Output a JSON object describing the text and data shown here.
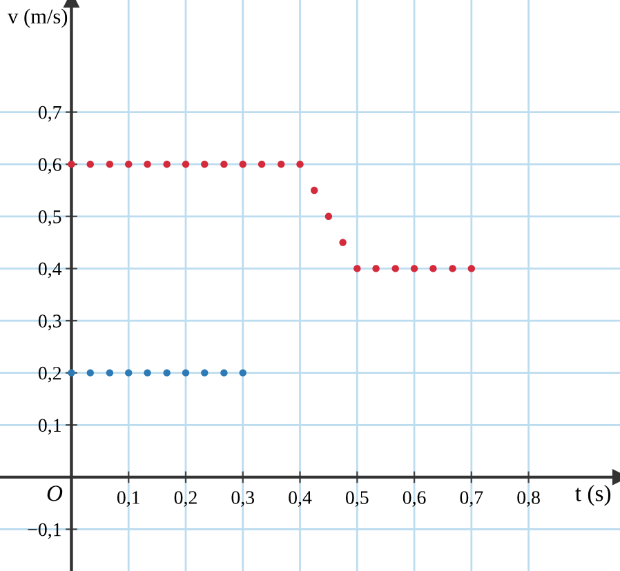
{
  "chart_data": {
    "type": "scatter",
    "xlabel": "t (s)",
    "ylabel": "v (m/s)",
    "annotations": [
      "O"
    ],
    "series": [
      {
        "color": "#d42a3c",
        "x": [
          0,
          0.033,
          0.067,
          0.1,
          0.133,
          0.167,
          0.2,
          0.233,
          0.267,
          0.3,
          0.333,
          0.367,
          0.4,
          0.425,
          0.45,
          0.475,
          0.5,
          0.533,
          0.567,
          0.6,
          0.633,
          0.667,
          0.7
        ],
        "values": [
          0.6,
          0.6,
          0.6,
          0.6,
          0.6,
          0.6,
          0.6,
          0.6,
          0.6,
          0.6,
          0.6,
          0.6,
          0.6,
          0.55,
          0.5,
          0.45,
          0.4,
          0.4,
          0.4,
          0.4,
          0.4,
          0.4,
          0.4
        ]
      },
      {
        "color": "#2d7bb6",
        "x": [
          0,
          0.033,
          0.067,
          0.1,
          0.133,
          0.167,
          0.2,
          0.233,
          0.267,
          0.3
        ],
        "values": [
          0.2,
          0.2,
          0.2,
          0.2,
          0.2,
          0.2,
          0.2,
          0.2,
          0.2,
          0.2
        ]
      }
    ],
    "marker": "circle",
    "grid": true,
    "xlim": [
      -0.125,
      0.96
    ],
    "ylim": [
      -0.18,
      0.915
    ],
    "xticks": [
      {
        "value": 0.1,
        "label": "0,1"
      },
      {
        "value": 0.2,
        "label": "0,2"
      },
      {
        "value": 0.3,
        "label": "0,3"
      },
      {
        "value": 0.4,
        "label": "0,4"
      },
      {
        "value": 0.5,
        "label": "0,5"
      },
      {
        "value": 0.6,
        "label": "0,6"
      },
      {
        "value": 0.7,
        "label": "0,7"
      },
      {
        "value": 0.8,
        "label": "0,8"
      }
    ],
    "yticks": [
      {
        "value": -0.1,
        "label": "−0,1"
      },
      {
        "value": 0.1,
        "label": "0,1"
      },
      {
        "value": 0.2,
        "label": "0,2"
      },
      {
        "value": 0.3,
        "label": "0,3"
      },
      {
        "value": 0.4,
        "label": "0,4"
      },
      {
        "value": 0.5,
        "label": "0,5"
      },
      {
        "value": 0.6,
        "label": "0,6"
      },
      {
        "value": 0.7,
        "label": "0,7"
      }
    ]
  }
}
